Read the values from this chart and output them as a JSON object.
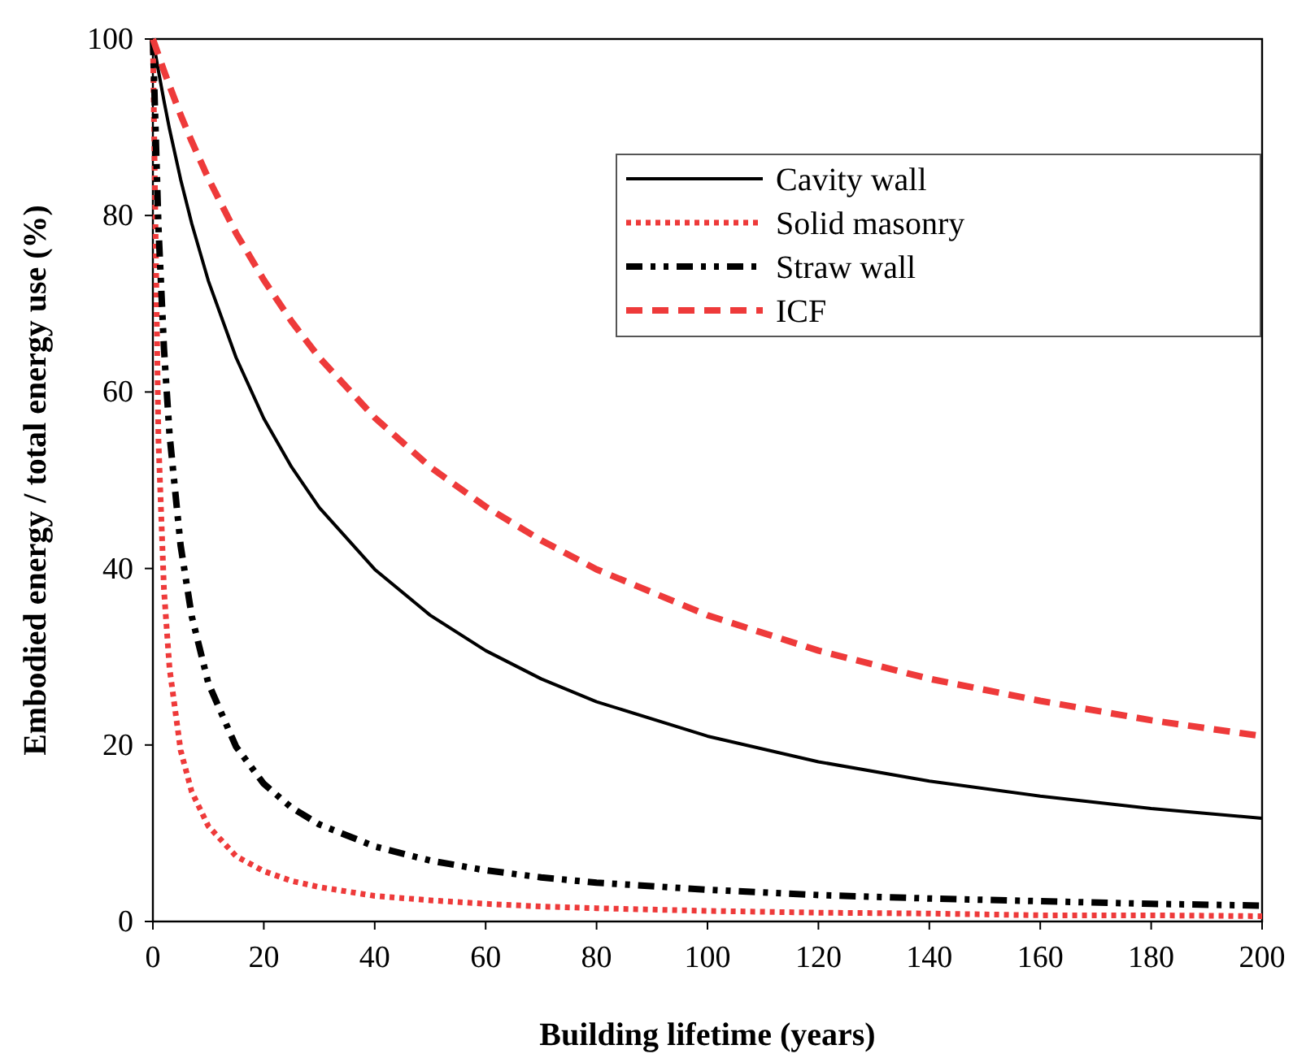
{
  "chart_data": {
    "type": "line",
    "xlabel": "Building lifetime (years)",
    "ylabel": "Embodied energy / total energy use (%)",
    "x": [
      0,
      1,
      2,
      3,
      5,
      7,
      10,
      15,
      20,
      25,
      30,
      40,
      50,
      60,
      70,
      80,
      100,
      120,
      140,
      160,
      180,
      200
    ],
    "series": [
      {
        "name": "Cavity wall",
        "color": "#000000",
        "line_style": "solid",
        "values": [
          100,
          96.4,
          93.0,
          89.8,
          84.1,
          79.1,
          72.6,
          63.9,
          57.0,
          51.5,
          46.9,
          39.9,
          34.7,
          30.7,
          27.5,
          24.9,
          21.0,
          18.1,
          15.9,
          14.2,
          12.8,
          11.7
        ]
      },
      {
        "name": "Solid masonry",
        "color": "#ee3a3a",
        "line_style": "dotted",
        "values": [
          100,
          54.6,
          37.6,
          28.7,
          19.4,
          14.7,
          10.8,
          7.4,
          5.7,
          4.6,
          3.9,
          2.9,
          2.4,
          2.0,
          1.7,
          1.5,
          1.2,
          1.0,
          0.9,
          0.7,
          0.7,
          0.6
        ]
      },
      {
        "name": "Straw wall",
        "color": "#000000",
        "line_style": "dashdot",
        "values": [
          100,
          78.7,
          64.9,
          55.2,
          42.6,
          34.6,
          27.0,
          19.8,
          15.6,
          12.9,
          11.0,
          8.5,
          6.9,
          5.8,
          5.0,
          4.4,
          3.6,
          3.0,
          2.6,
          2.3,
          2.0,
          1.8
        ]
      },
      {
        "name": "ICF",
        "color": "#ee3a3a",
        "line_style": "dashed",
        "values": [
          100,
          98.2,
          96.4,
          94.7,
          91.4,
          88.4,
          84.2,
          78.0,
          72.7,
          68.0,
          63.9,
          57.1,
          51.5,
          47.0,
          43.2,
          39.9,
          34.7,
          30.7,
          27.5,
          25.0,
          22.8,
          21.0
        ]
      }
    ],
    "xlim": [
      0,
      200
    ],
    "xticks": [
      0,
      20,
      40,
      60,
      80,
      100,
      120,
      140,
      160,
      180,
      200
    ],
    "ylim": [
      0,
      100
    ],
    "yticks": [
      0,
      20,
      40,
      60,
      80,
      100
    ],
    "grid": false,
    "legend": "top right",
    "marker": "none"
  }
}
